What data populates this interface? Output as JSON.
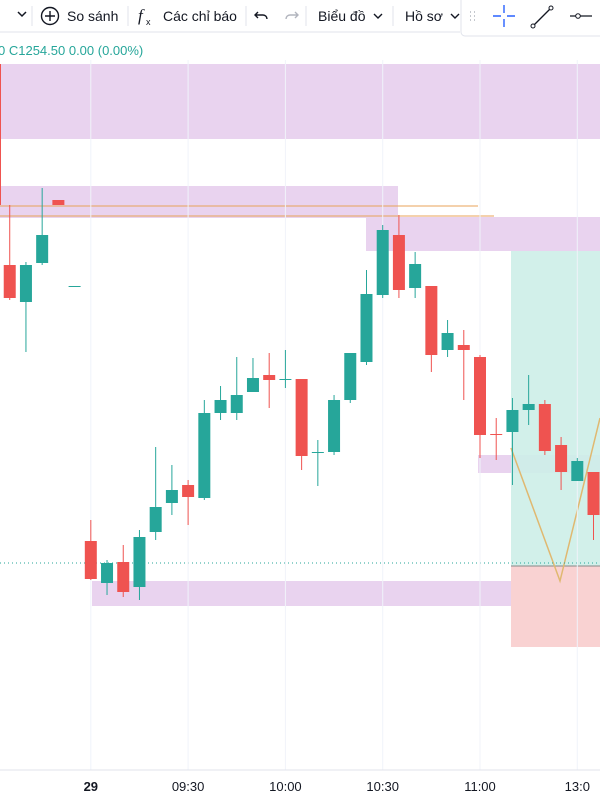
{
  "toolbar": {
    "compare": "So sánh",
    "indicators": "Các chỉ báo",
    "chart": "Biểu đồ",
    "profile": "Hồ sơ"
  },
  "chart_data": {
    "type": "candlestick",
    "legend": "0 C1254.50 0.00 (0.00%)",
    "up_color": "#26a69a",
    "down_color": "#ef5350",
    "ylim": [
      1244.15,
      1279.65
    ],
    "xlim": [
      -0.6,
      36.4
    ],
    "xticks": [
      {
        "value": 5,
        "label": "29"
      },
      {
        "value": 11,
        "label": "09:30"
      },
      {
        "value": 17,
        "label": "10:00"
      },
      {
        "value": 23,
        "label": "10:30"
      },
      {
        "value": 29,
        "label": "11:00"
      },
      {
        "value": 35,
        "label": "13:0"
      }
    ],
    "grid": true,
    "candles": [
      {
        "o": 1269.4,
        "h": 1272.4,
        "l": 1267.65,
        "c": 1267.75
      },
      {
        "o": 1267.55,
        "h": 1269.55,
        "l": 1265.05,
        "c": 1269.4
      },
      {
        "o": 1269.5,
        "h": 1273.25,
        "l": 1269.4,
        "c": 1270.9
      },
      {
        "o": 1272.65,
        "h": 1272.65,
        "l": 1272.4,
        "c": 1272.4
      },
      {
        "o": 1268.35,
        "h": 1268.35,
        "l": 1268.35,
        "c": 1268.35
      },
      {
        "o": 1255.6,
        "h": 1256.65,
        "l": 1253.65,
        "c": 1253.7
      },
      {
        "o": 1253.5,
        "h": 1254.65,
        "l": 1252.9,
        "c": 1254.5
      },
      {
        "o": 1254.55,
        "h": 1255.4,
        "l": 1252.8,
        "c": 1253.05
      },
      {
        "o": 1253.3,
        "h": 1256.15,
        "l": 1252.65,
        "c": 1255.8
      },
      {
        "o": 1256.05,
        "h": 1260.3,
        "l": 1255.65,
        "c": 1257.3
      },
      {
        "o": 1257.5,
        "h": 1259.4,
        "l": 1256.9,
        "c": 1258.15
      },
      {
        "o": 1258.4,
        "h": 1258.65,
        "l": 1256.4,
        "c": 1257.8
      },
      {
        "o": 1257.75,
        "h": 1262.65,
        "l": 1257.65,
        "c": 1262
      },
      {
        "o": 1262,
        "h": 1263.35,
        "l": 1261.65,
        "c": 1262.65
      },
      {
        "o": 1262,
        "h": 1264.8,
        "l": 1261.65,
        "c": 1262.9
      },
      {
        "o": 1263.05,
        "h": 1264.75,
        "l": 1263.05,
        "c": 1263.75
      },
      {
        "o": 1263.9,
        "h": 1265,
        "l": 1262.25,
        "c": 1263.65
      },
      {
        "o": 1263.65,
        "h": 1265.15,
        "l": 1263.25,
        "c": 1263.7
      },
      {
        "o": 1263.7,
        "h": 1263.7,
        "l": 1259.15,
        "c": 1259.85
      },
      {
        "o": 1260,
        "h": 1260.65,
        "l": 1258.35,
        "c": 1260.05
      },
      {
        "o": 1260.05,
        "h": 1262.9,
        "l": 1259.9,
        "c": 1262.65
      },
      {
        "o": 1262.65,
        "h": 1265,
        "l": 1262.5,
        "c": 1265
      },
      {
        "o": 1264.55,
        "h": 1269.15,
        "l": 1264.4,
        "c": 1267.95
      },
      {
        "o": 1267.9,
        "h": 1271.4,
        "l": 1267.75,
        "c": 1271.15
      },
      {
        "o": 1270.9,
        "h": 1271.9,
        "l": 1267.75,
        "c": 1268.15
      },
      {
        "o": 1268.25,
        "h": 1270.05,
        "l": 1267.75,
        "c": 1269.45
      },
      {
        "o": 1268.35,
        "h": 1268.35,
        "l": 1264.05,
        "c": 1264.9
      },
      {
        "o": 1265.15,
        "h": 1266.65,
        "l": 1264.8,
        "c": 1266
      },
      {
        "o": 1265.4,
        "h": 1266.15,
        "l": 1262.65,
        "c": 1265.15
      },
      {
        "o": 1264.8,
        "h": 1264.9,
        "l": 1259.75,
        "c": 1260.9
      },
      {
        "o": 1260.95,
        "h": 1261.75,
        "l": 1259.65,
        "c": 1260.9
      },
      {
        "o": 1261.05,
        "h": 1262.75,
        "l": 1258.4,
        "c": 1262.15
      },
      {
        "o": 1262.15,
        "h": 1263.9,
        "l": 1261.4,
        "c": 1262.45
      },
      {
        "o": 1262.45,
        "h": 1262.65,
        "l": 1259.9,
        "c": 1260.1
      },
      {
        "o": 1260.4,
        "h": 1260.8,
        "l": 1258.15,
        "c": 1259.05
      },
      {
        "o": 1258.6,
        "h": 1259.75,
        "l": 1258.6,
        "c": 1259.6
      },
      {
        "o": 1259.05,
        "h": 1259.05,
        "l": 1255.65,
        "c": 1256.9
      }
    ]
  }
}
